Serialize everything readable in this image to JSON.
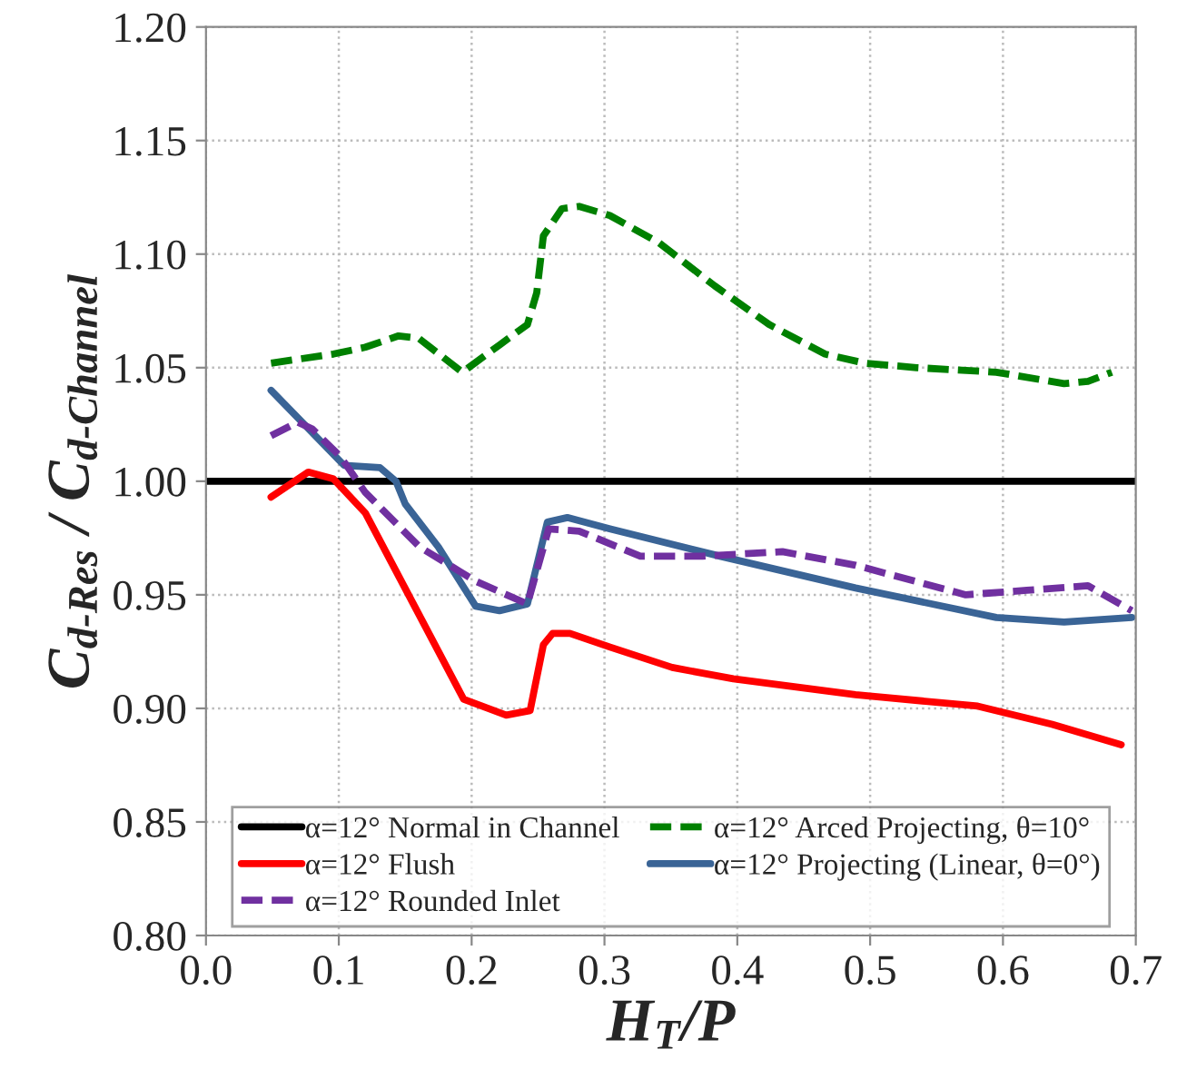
{
  "chart_data": {
    "type": "line",
    "xlabel": "H$_{T}$/P",
    "ylabel": "C$_{d-Res}$ / C$_{d-Channel}$",
    "xlim": [
      0.0,
      0.7
    ],
    "xticks": [
      {
        "value": 0.0,
        "label": "0.0"
      },
      0.1,
      0.2,
      0.3,
      0.4,
      0.5,
      0.6,
      0.7
    ],
    "ylim": [
      0.8,
      1.2
    ],
    "yticks": [
      {
        "value": 0.8,
        "label": "0.80"
      },
      0.85,
      {
        "value": 0.9,
        "label": "0.90"
      },
      0.95,
      {
        "value": 1.0,
        "label": "1.00"
      },
      1.05,
      {
        "value": 1.1,
        "label": "1.10"
      },
      1.15,
      {
        "value": 1.2,
        "label": "1.20"
      }
    ],
    "grid": true,
    "legend": "bottom",
    "marker": "none",
    "series": [
      {
        "name": "α=12° Normal in Channel",
        "color": "#000000",
        "line_style": "solid",
        "x": [
          0.0,
          0.7
        ],
        "values": [
          1.0,
          1.0
        ]
      },
      {
        "name": "α=12° Arced Projecting, θ=10°",
        "color": "#008000",
        "line_style": "dashed",
        "x": [
          0.049,
          0.096,
          0.12,
          0.145,
          0.16,
          0.193,
          0.221,
          0.242,
          0.249,
          0.254,
          0.268,
          0.281,
          0.304,
          0.341,
          0.383,
          0.424,
          0.466,
          0.496,
          0.535,
          0.595,
          0.646,
          0.664,
          0.682
        ],
        "values": [
          1.052,
          1.056,
          1.059,
          1.064,
          1.063,
          1.048,
          1.06,
          1.069,
          1.083,
          1.108,
          1.12,
          1.121,
          1.117,
          1.105,
          1.086,
          1.069,
          1.056,
          1.052,
          1.05,
          1.048,
          1.043,
          1.044,
          1.048
        ]
      },
      {
        "name": "α=12° Flush",
        "color": "#ff0000",
        "line_style": "solid",
        "x": [
          0.049,
          0.077,
          0.096,
          0.12,
          0.157,
          0.194,
          0.226,
          0.244,
          0.254,
          0.261,
          0.274,
          0.304,
          0.351,
          0.397,
          0.489,
          0.581,
          0.637,
          0.689
        ],
        "values": [
          0.993,
          1.004,
          1.001,
          0.986,
          0.945,
          0.904,
          0.897,
          0.899,
          0.928,
          0.933,
          0.933,
          0.927,
          0.918,
          0.913,
          0.906,
          0.901,
          0.893,
          0.884
        ]
      },
      {
        "name": "α=12° Projecting (Linear, θ=0°)",
        "color": "#3a6496",
        "line_style": "solid",
        "x": [
          0.049,
          0.074,
          0.104,
          0.131,
          0.143,
          0.15,
          0.175,
          0.203,
          0.221,
          0.242,
          0.257,
          0.272,
          0.304,
          0.387,
          0.489,
          0.595,
          0.646,
          0.697
        ],
        "values": [
          1.04,
          1.025,
          1.007,
          1.006,
          1.0,
          0.99,
          0.971,
          0.945,
          0.943,
          0.946,
          0.982,
          0.984,
          0.979,
          0.967,
          0.953,
          0.94,
          0.938,
          0.94
        ]
      },
      {
        "name": "α=12° Rounded Inlet",
        "color": "#7030a0",
        "line_style": "dashed",
        "x": [
          0.049,
          0.069,
          0.08,
          0.101,
          0.12,
          0.161,
          0.203,
          0.242,
          0.258,
          0.281,
          0.327,
          0.374,
          0.434,
          0.489,
          0.572,
          0.618,
          0.664,
          0.697
        ],
        "values": [
          1.02,
          1.026,
          1.023,
          1.011,
          0.995,
          0.971,
          0.956,
          0.946,
          0.979,
          0.978,
          0.967,
          0.967,
          0.969,
          0.963,
          0.95,
          0.952,
          0.954,
          0.943
        ]
      }
    ]
  }
}
